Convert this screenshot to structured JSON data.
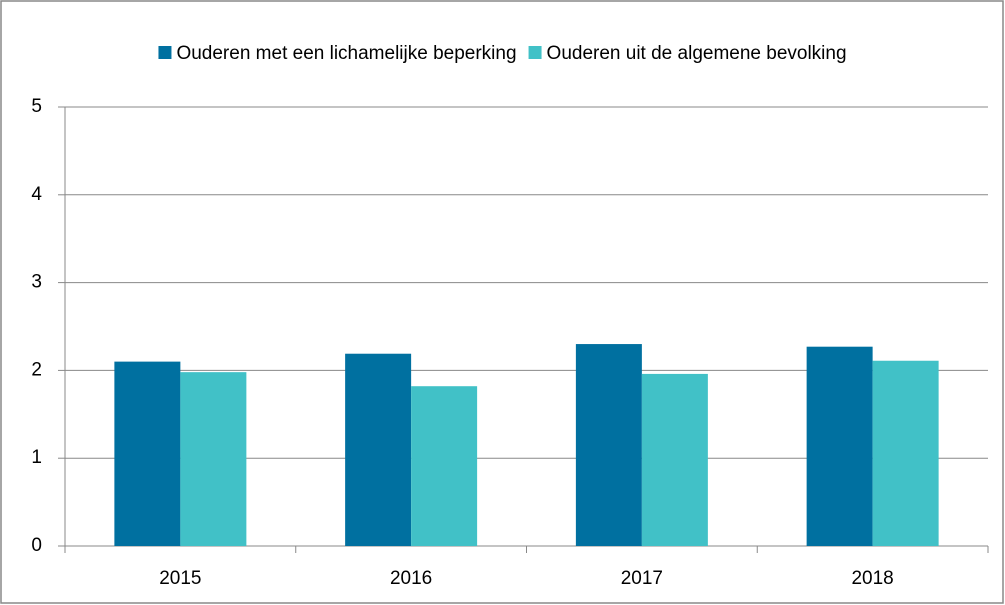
{
  "chart_data": {
    "type": "bar",
    "categories": [
      "2015",
      "2016",
      "2017",
      "2018"
    ],
    "series": [
      {
        "name": "Ouderen met een lichamelijke beperking",
        "color": "#0070a0",
        "values": [
          2.1,
          2.19,
          2.3,
          2.27
        ]
      },
      {
        "name": "Ouderen uit de algemene bevolking",
        "color": "#41c1c7",
        "values": [
          1.98,
          1.82,
          1.96,
          2.11
        ]
      }
    ],
    "ylim": [
      0,
      5
    ],
    "yticks": [
      0,
      1,
      2,
      3,
      4,
      5
    ],
    "grid": true,
    "legend": "top"
  }
}
